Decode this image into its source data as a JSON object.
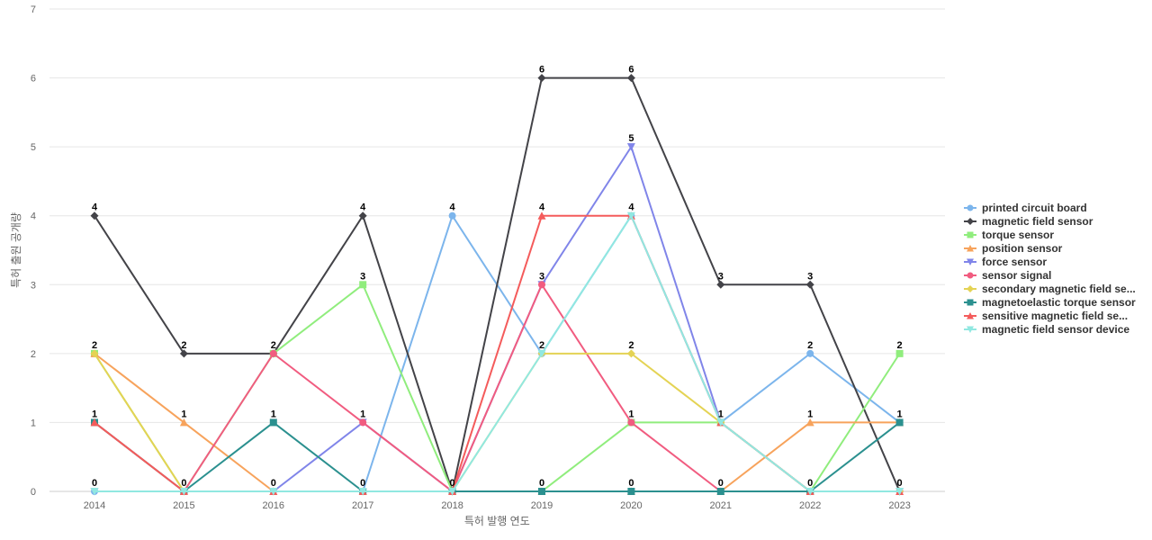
{
  "chart_data": {
    "type": "line",
    "title": "",
    "xlabel": "특허 발행 연도",
    "ylabel": "특허 출원 공개량",
    "categories": [
      "2014",
      "2015",
      "2016",
      "2017",
      "2018",
      "2019",
      "2020",
      "2021",
      "2022",
      "2023"
    ],
    "ylim": [
      0,
      7
    ],
    "yticks": [
      0,
      1,
      2,
      3,
      4,
      5,
      6,
      7
    ],
    "grid": true,
    "legend_position": "right",
    "series": [
      {
        "name": "printed circuit board",
        "color": "#7cb5ec",
        "marker": "circle",
        "values": [
          0,
          0,
          0,
          0,
          4,
          2,
          4,
          1,
          2,
          1
        ]
      },
      {
        "name": "magnetic field sensor",
        "color": "#434348",
        "marker": "diamond",
        "values": [
          4,
          2,
          2,
          4,
          0,
          6,
          6,
          3,
          3,
          0
        ]
      },
      {
        "name": "torque sensor",
        "color": "#90ed7d",
        "marker": "square",
        "values": [
          2,
          0,
          2,
          3,
          0,
          0,
          1,
          1,
          0,
          2
        ]
      },
      {
        "name": "position sensor",
        "color": "#f7a35c",
        "marker": "triangle",
        "values": [
          2,
          1,
          0,
          0,
          0,
          0,
          0,
          0,
          1,
          1
        ]
      },
      {
        "name": "force sensor",
        "color": "#8085e9",
        "marker": "triangle-down",
        "values": [
          0,
          0,
          0,
          1,
          0,
          3,
          5,
          1,
          0,
          0
        ]
      },
      {
        "name": "sensor signal",
        "color": "#f15c80",
        "marker": "circle",
        "values": [
          1,
          0,
          2,
          1,
          0,
          3,
          1,
          0,
          0,
          0
        ]
      },
      {
        "name": "secondary magnetic field se...",
        "color": "#e4d354",
        "marker": "diamond",
        "values": [
          2,
          0,
          0,
          0,
          0,
          2,
          2,
          1,
          0,
          0
        ]
      },
      {
        "name": "magnetoelastic torque sensor",
        "color": "#2b908f",
        "marker": "square",
        "values": [
          1,
          0,
          1,
          0,
          0,
          0,
          0,
          0,
          0,
          1
        ]
      },
      {
        "name": "sensitive magnetic field se...",
        "color": "#f45b5b",
        "marker": "triangle",
        "values": [
          1,
          0,
          0,
          0,
          0,
          4,
          4,
          1,
          0,
          0
        ]
      },
      {
        "name": "magnetic field sensor device",
        "color": "#91e8e1",
        "marker": "triangle-down",
        "values": [
          0,
          0,
          0,
          0,
          0,
          2,
          4,
          1,
          0,
          0
        ]
      }
    ],
    "data_labels": [
      [
        "4",
        "4"
      ],
      [
        "2",
        "2"
      ],
      [
        "0",
        "0"
      ],
      [
        "1",
        "1"
      ]
    ],
    "top_labels": [
      [
        "4",
        "2",
        "2",
        "4",
        "4",
        "6",
        "6",
        "3",
        "3",
        "2"
      ],
      [
        "2",
        "1",
        "2",
        "3",
        "0",
        "4",
        "5",
        "1",
        "2",
        "1"
      ],
      [
        "1",
        "0",
        "1",
        "1",
        "0",
        "3",
        "4",
        "1",
        "1",
        "0"
      ],
      [
        "0",
        "0",
        "0",
        "0",
        "0",
        "2",
        "2",
        "0",
        "0",
        "0"
      ]
    ]
  }
}
